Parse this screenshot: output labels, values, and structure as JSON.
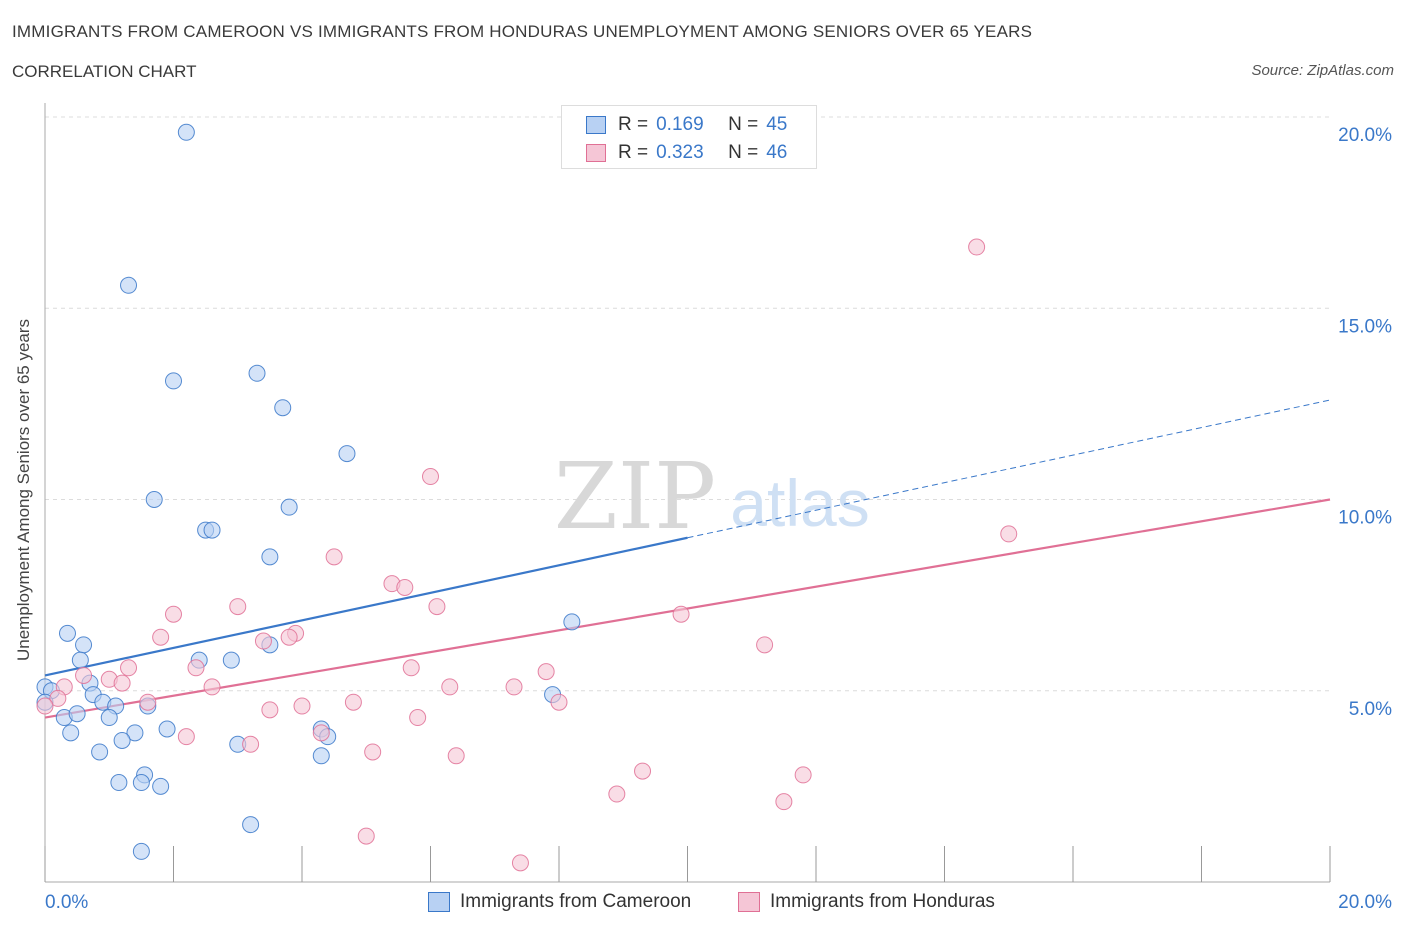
{
  "title": "IMMIGRANTS FROM CAMEROON VS IMMIGRANTS FROM HONDURAS UNEMPLOYMENT AMONG SENIORS OVER 65 YEARS",
  "subtitle": "CORRELATION CHART",
  "source": "Source: ZipAtlas.com",
  "colors": {
    "blue": "#3a78c9",
    "blue_fill": "#b8d1f3",
    "pink": "#e07095",
    "pink_fill": "#f5c6d6",
    "grid": "#dcdcdc",
    "tick_text": "#3a78c9"
  },
  "legend": {
    "rows": [
      {
        "r_label": "R =",
        "r_value": "0.169",
        "n_label": "N =",
        "n_value": "45"
      },
      {
        "r_label": "R =",
        "r_value": "0.323",
        "n_label": "N =",
        "n_value": "46"
      }
    ]
  },
  "bottom_legend": [
    "Immigrants from Cameroon",
    "Immigrants from Honduras"
  ],
  "chart_data": {
    "type": "scatter",
    "title": "IMMIGRANTS FROM CAMEROON VS IMMIGRANTS FROM HONDURAS UNEMPLOYMENT AMONG SENIORS OVER 65 YEARS",
    "xlabel": "",
    "ylabel": "Unemployment Among Seniors over 65 years",
    "xlim": [
      0,
      20
    ],
    "ylim": [
      0,
      20
    ],
    "x_tick_labels": [
      "0.0%",
      "20.0%"
    ],
    "y_tick_labels": [
      "5.0%",
      "10.0%",
      "15.0%",
      "20.0%"
    ],
    "y_ticks": [
      5,
      10,
      15,
      20
    ],
    "grid": true,
    "watermark": [
      "ZIP",
      "atlas"
    ],
    "series": [
      {
        "name": "Immigrants from Cameroon",
        "r": 0.169,
        "n": 45,
        "trend": {
          "x0": 0,
          "y0": 5.4,
          "x1": 10.0,
          "y1": 9.0,
          "dashed_x1": 20.0,
          "dashed_y1": 12.6
        },
        "points": [
          [
            2.2,
            19.6
          ],
          [
            1.3,
            15.6
          ],
          [
            2.0,
            13.1
          ],
          [
            3.3,
            13.3
          ],
          [
            3.7,
            12.4
          ],
          [
            4.7,
            11.2
          ],
          [
            1.7,
            10.0
          ],
          [
            3.8,
            9.8
          ],
          [
            2.5,
            9.2
          ],
          [
            2.6,
            9.2
          ],
          [
            3.5,
            8.5
          ],
          [
            0.35,
            6.5
          ],
          [
            0.6,
            6.2
          ],
          [
            0.55,
            5.8
          ],
          [
            2.4,
            5.8
          ],
          [
            2.9,
            5.8
          ],
          [
            3.5,
            6.2
          ],
          [
            8.2,
            6.8
          ],
          [
            0.0,
            5.1
          ],
          [
            0.1,
            5.0
          ],
          [
            0.7,
            5.2
          ],
          [
            0.75,
            4.9
          ],
          [
            0.9,
            4.7
          ],
          [
            1.1,
            4.6
          ],
          [
            0.0,
            4.7
          ],
          [
            0.3,
            4.3
          ],
          [
            0.5,
            4.4
          ],
          [
            1.0,
            4.3
          ],
          [
            1.6,
            4.6
          ],
          [
            7.9,
            4.9
          ],
          [
            1.9,
            4.0
          ],
          [
            0.4,
            3.9
          ],
          [
            1.4,
            3.9
          ],
          [
            1.2,
            3.7
          ],
          [
            3.0,
            3.6
          ],
          [
            4.3,
            4.0
          ],
          [
            4.4,
            3.8
          ],
          [
            0.85,
            3.4
          ],
          [
            4.3,
            3.3
          ],
          [
            1.55,
            2.8
          ],
          [
            1.15,
            2.6
          ],
          [
            1.5,
            2.6
          ],
          [
            1.8,
            2.5
          ],
          [
            3.2,
            1.5
          ],
          [
            1.5,
            0.8
          ]
        ]
      },
      {
        "name": "Immigrants from Honduras",
        "r": 0.323,
        "n": 46,
        "trend": {
          "x0": 0,
          "y0": 4.3,
          "x1": 20.0,
          "y1": 10.0
        },
        "points": [
          [
            11.0,
            19.9
          ],
          [
            14.5,
            16.6
          ],
          [
            6.0,
            10.6
          ],
          [
            15.0,
            9.1
          ],
          [
            4.5,
            8.5
          ],
          [
            5.4,
            7.8
          ],
          [
            5.6,
            7.7
          ],
          [
            3.0,
            7.2
          ],
          [
            6.1,
            7.2
          ],
          [
            2.0,
            7.0
          ],
          [
            9.9,
            7.0
          ],
          [
            1.8,
            6.4
          ],
          [
            3.4,
            6.3
          ],
          [
            3.9,
            6.5
          ],
          [
            3.8,
            6.4
          ],
          [
            11.2,
            6.2
          ],
          [
            1.3,
            5.6
          ],
          [
            2.35,
            5.6
          ],
          [
            5.7,
            5.6
          ],
          [
            7.8,
            5.5
          ],
          [
            0.6,
            5.4
          ],
          [
            1.0,
            5.3
          ],
          [
            1.2,
            5.2
          ],
          [
            0.3,
            5.1
          ],
          [
            2.6,
            5.1
          ],
          [
            6.3,
            5.1
          ],
          [
            7.3,
            5.1
          ],
          [
            0.2,
            4.8
          ],
          [
            1.6,
            4.7
          ],
          [
            4.8,
            4.7
          ],
          [
            4.0,
            4.6
          ],
          [
            3.5,
            4.5
          ],
          [
            8.0,
            4.7
          ],
          [
            5.8,
            4.3
          ],
          [
            4.3,
            3.9
          ],
          [
            2.2,
            3.8
          ],
          [
            3.2,
            3.6
          ],
          [
            5.1,
            3.4
          ],
          [
            6.4,
            3.3
          ],
          [
            9.3,
            2.9
          ],
          [
            11.8,
            2.8
          ],
          [
            8.9,
            2.3
          ],
          [
            11.5,
            2.1
          ],
          [
            5.0,
            1.2
          ],
          [
            7.4,
            0.5
          ],
          [
            0.0,
            4.6
          ]
        ]
      }
    ]
  }
}
